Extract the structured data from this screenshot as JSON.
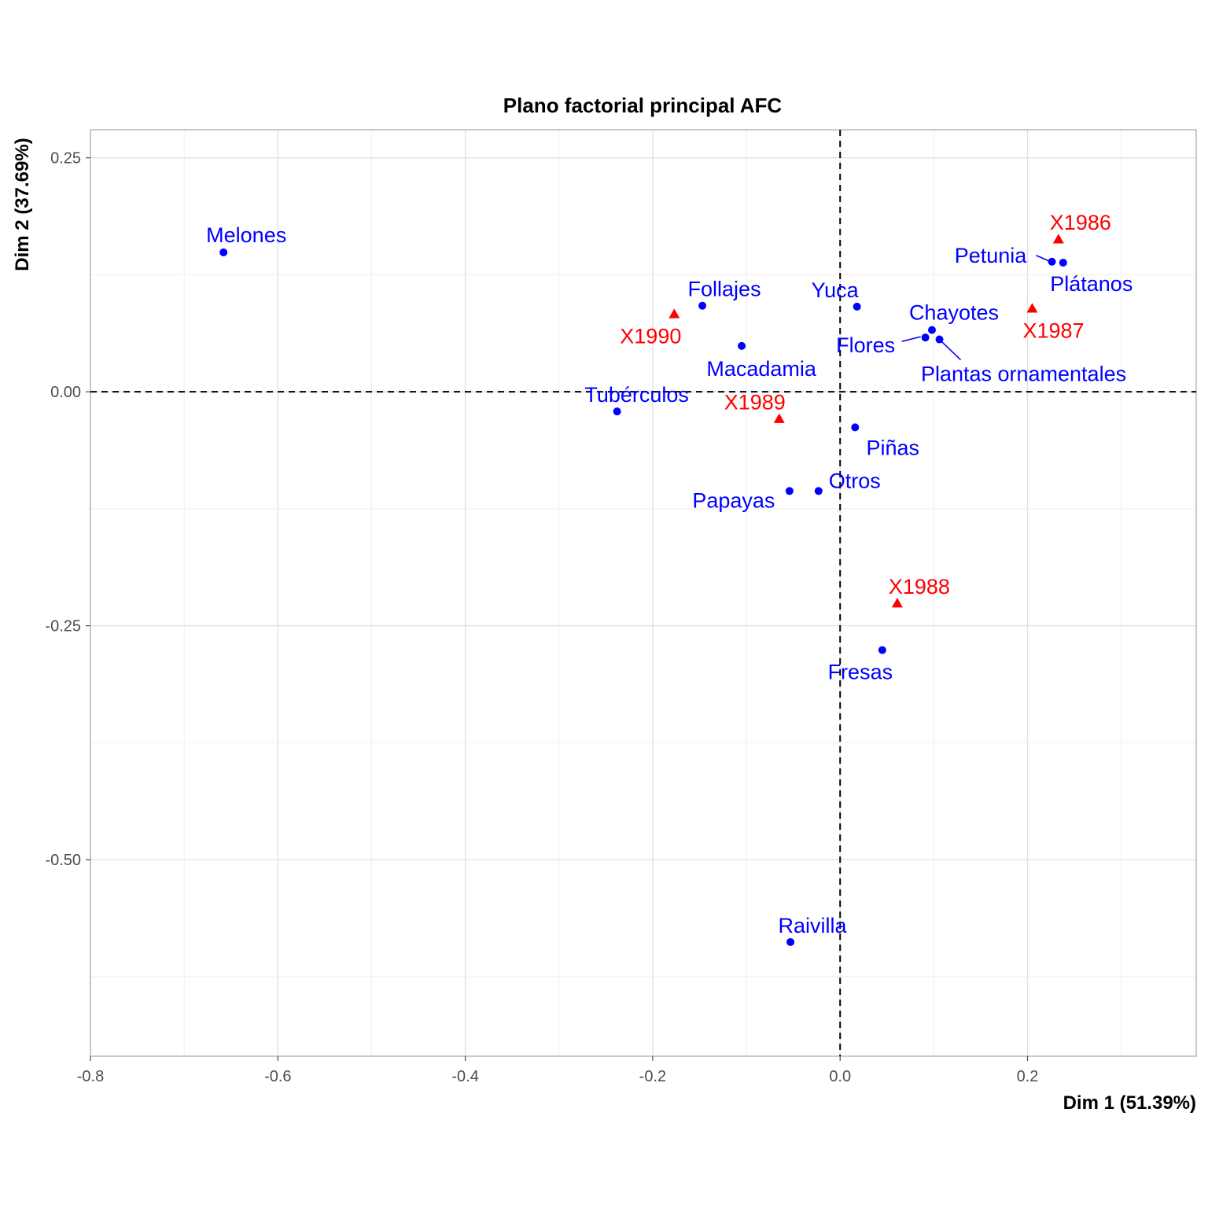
{
  "chart_data": {
    "type": "scatter",
    "title": "Plano factorial principal AFC",
    "xlabel": "Dim 1 (51.39%)",
    "ylabel": "Dim 2 (37.69%)",
    "xlim": [
      -0.8,
      0.38
    ],
    "ylim": [
      -0.71,
      0.28
    ],
    "x_ticks": [
      "-0.8",
      "-0.6",
      "-0.4",
      "-0.2",
      "0.0",
      "0.2"
    ],
    "y_ticks": [
      "0.25",
      "0.00",
      "-0.25",
      "-0.50"
    ],
    "grid": true,
    "reference_lines": {
      "x": 0,
      "y": 0
    },
    "colors": {
      "row": "#0000ff",
      "col": "#ff0000"
    },
    "series": [
      {
        "marker": "circle",
        "color": "#0000ff",
        "points": [
          {
            "label": "Melones",
            "x": -0.658,
            "y": 0.149
          },
          {
            "label": "Follajes",
            "x": -0.147,
            "y": 0.092
          },
          {
            "label": "Macadamia",
            "x": -0.105,
            "y": 0.049
          },
          {
            "label": "Yuca",
            "x": 0.018,
            "y": 0.091
          },
          {
            "label": "Petunia",
            "x": 0.226,
            "y": 0.139
          },
          {
            "label": "Plátanos",
            "x": 0.238,
            "y": 0.138
          },
          {
            "label": "Chayotes",
            "x": 0.098,
            "y": 0.066
          },
          {
            "label": "Flores",
            "x": 0.091,
            "y": 0.058
          },
          {
            "label": "Plantas ornamentales",
            "x": 0.106,
            "y": 0.056
          },
          {
            "label": "Tubérculos",
            "x": -0.238,
            "y": -0.021
          },
          {
            "label": "Piñas",
            "x": 0.016,
            "y": -0.038
          },
          {
            "label": "Otros",
            "x": -0.023,
            "y": -0.106
          },
          {
            "label": "Papayas",
            "x": -0.054,
            "y": -0.106
          },
          {
            "label": "Fresas",
            "x": 0.045,
            "y": -0.276
          },
          {
            "label": "Raivilla",
            "x": -0.053,
            "y": -0.588
          }
        ]
      },
      {
        "marker": "triangle",
        "color": "#ff0000",
        "points": [
          {
            "label": "X1986",
            "x": 0.233,
            "y": 0.163
          },
          {
            "label": "X1987",
            "x": 0.205,
            "y": 0.089
          },
          {
            "label": "X1990",
            "x": -0.177,
            "y": 0.083
          },
          {
            "label": "X1989",
            "x": -0.065,
            "y": -0.029
          },
          {
            "label": "X1988",
            "x": 0.061,
            "y": -0.226
          }
        ]
      }
    ]
  }
}
